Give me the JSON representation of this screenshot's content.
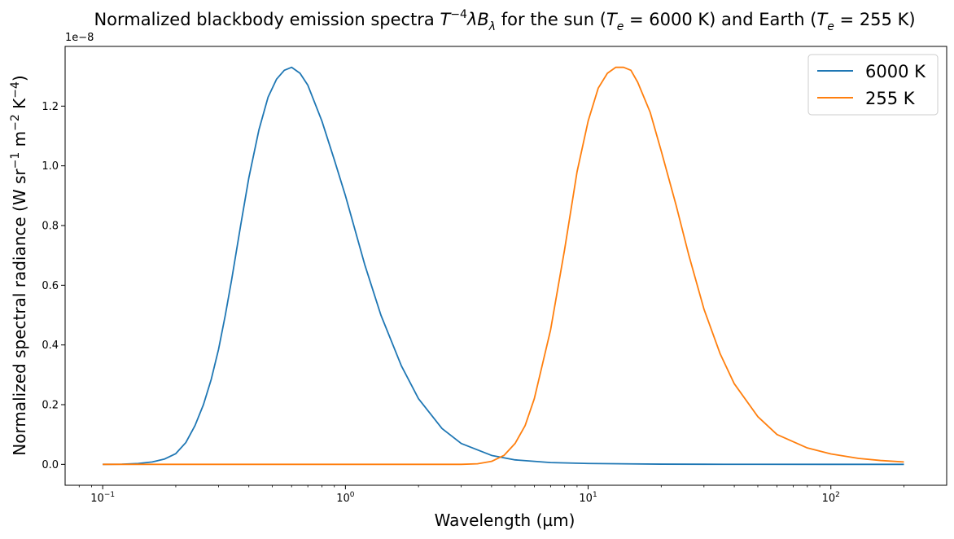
{
  "chart_data": {
    "type": "line",
    "title": "Normalized blackbody emission spectra T⁻⁴λBλ for the sun (Tₑ = 6000 K) and Earth (Tₑ = 255 K)",
    "xlabel": "Wavelength (µm)",
    "ylabel": "Normalized spectral radiance (W sr⁻¹ m⁻² K⁻⁴)",
    "xscale": "log",
    "xlim": [
      0.07,
      300
    ],
    "ylim": [
      -7e-10,
      1.4e-08
    ],
    "y_offset_label": "1e−8",
    "x_ticks": [
      {
        "value": 0.1,
        "base": "10",
        "exp": "−1"
      },
      {
        "value": 1,
        "base": "10",
        "exp": "0"
      },
      {
        "value": 10,
        "base": "10",
        "exp": "1"
      },
      {
        "value": 100,
        "base": "10",
        "exp": "2"
      }
    ],
    "y_ticks": [
      {
        "value": 0.0,
        "label": "0.0"
      },
      {
        "value": 2e-09,
        "label": "0.2"
      },
      {
        "value": 4e-09,
        "label": "0.4"
      },
      {
        "value": 6e-09,
        "label": "0.6"
      },
      {
        "value": 8e-09,
        "label": "0.8"
      },
      {
        "value": 1e-08,
        "label": "1.0"
      },
      {
        "value": 1.2e-08,
        "label": "1.2"
      }
    ],
    "grid": false,
    "legend_position": "top-right",
    "series": [
      {
        "name": "6000 K",
        "color": "#1f77b4",
        "x": [
          0.1,
          0.12,
          0.14,
          0.16,
          0.18,
          0.2,
          0.22,
          0.24,
          0.26,
          0.28,
          0.3,
          0.32,
          0.34,
          0.37,
          0.4,
          0.44,
          0.48,
          0.52,
          0.56,
          0.6,
          0.65,
          0.7,
          0.8,
          0.9,
          1.0,
          1.2,
          1.4,
          1.7,
          2.0,
          2.5,
          3.0,
          4.0,
          5.0,
          7.0,
          10.0,
          15.0,
          20.0,
          30.0,
          50.0,
          100.0,
          200.0
        ],
        "y": [
          0.0,
          5e-12,
          3e-11,
          8e-11,
          1.8e-10,
          3.6e-10,
          7.3e-10,
          1.3e-09,
          2e-09,
          2.85e-09,
          3.85e-09,
          5e-09,
          6.2e-09,
          8e-09,
          9.6e-09,
          1.12e-08,
          1.23e-08,
          1.29e-08,
          1.32e-08,
          1.33e-08,
          1.31e-08,
          1.27e-08,
          1.15e-08,
          1.02e-08,
          9e-09,
          6.7e-09,
          5e-09,
          3.3e-09,
          2.2e-09,
          1.2e-09,
          7e-10,
          3e-10,
          1.5e-10,
          6e-11,
          3e-11,
          1.5e-11,
          8e-12,
          4e-12,
          2e-12,
          1e-12,
          0.0
        ]
      },
      {
        "name": "255 K",
        "color": "#ff7f0e",
        "x": [
          0.1,
          0.5,
          1.0,
          2.0,
          3.0,
          3.5,
          4.0,
          4.5,
          5.0,
          5.5,
          6.0,
          7.0,
          8.0,
          9.0,
          10.0,
          11.0,
          12.0,
          13.0,
          14.0,
          15.0,
          16.0,
          18.0,
          20.0,
          23.0,
          26.0,
          30.0,
          35.0,
          40.0,
          50.0,
          60.0,
          80.0,
          100.0,
          130.0,
          160.0,
          200.0
        ],
        "y": [
          0.0,
          0.0,
          0.0,
          0.0,
          0.0,
          2e-11,
          1e-10,
          3e-10,
          7e-10,
          1.3e-09,
          2.2e-09,
          4.5e-09,
          7.2e-09,
          9.8e-09,
          1.15e-08,
          1.26e-08,
          1.31e-08,
          1.33e-08,
          1.33e-08,
          1.32e-08,
          1.28e-08,
          1.18e-08,
          1.05e-08,
          8.7e-09,
          7e-09,
          5.2e-09,
          3.7e-09,
          2.7e-09,
          1.6e-09,
          1e-09,
          5.5e-10,
          3.5e-10,
          2e-10,
          1.3e-10,
          8e-11
        ]
      }
    ]
  }
}
